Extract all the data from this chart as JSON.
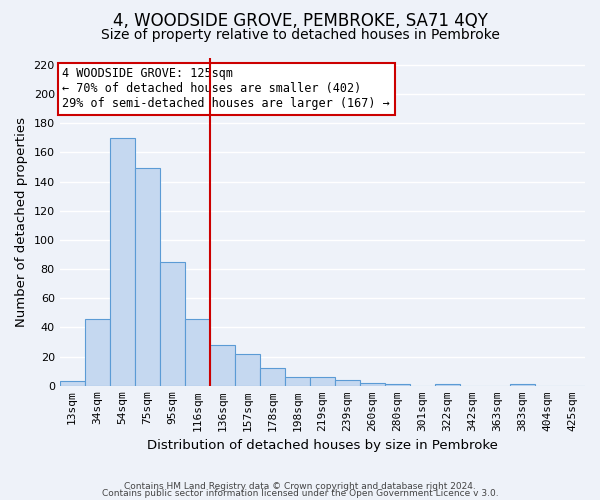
{
  "title": "4, WOODSIDE GROVE, PEMBROKE, SA71 4QY",
  "subtitle": "Size of property relative to detached houses in Pembroke",
  "xlabel": "Distribution of detached houses by size in Pembroke",
  "ylabel": "Number of detached properties",
  "bin_labels": [
    "13sqm",
    "34sqm",
    "54sqm",
    "75sqm",
    "95sqm",
    "116sqm",
    "136sqm",
    "157sqm",
    "178sqm",
    "198sqm",
    "219sqm",
    "239sqm",
    "260sqm",
    "280sqm",
    "301sqm",
    "322sqm",
    "342sqm",
    "363sqm",
    "383sqm",
    "404sqm",
    "425sqm"
  ],
  "bar_values": [
    3,
    46,
    170,
    149,
    85,
    46,
    28,
    22,
    12,
    6,
    6,
    4,
    2,
    1,
    0,
    1,
    0,
    0,
    1,
    0,
    0
  ],
  "bar_color": "#c5d8f0",
  "bar_edge_color": "#5b9bd5",
  "vline_color": "#cc0000",
  "vline_position": 5.5,
  "annotation_text": "4 WOODSIDE GROVE: 125sqm\n← 70% of detached houses are smaller (402)\n29% of semi-detached houses are larger (167) →",
  "annotation_box_color": "#ffffff",
  "annotation_box_edge": "#cc0000",
  "ylim": [
    0,
    225
  ],
  "yticks": [
    0,
    20,
    40,
    60,
    80,
    100,
    120,
    140,
    160,
    180,
    200,
    220
  ],
  "footer1": "Contains HM Land Registry data © Crown copyright and database right 2024.",
  "footer2": "Contains public sector information licensed under the Open Government Licence v 3.0.",
  "background_color": "#eef2f9",
  "grid_color": "#ffffff",
  "title_fontsize": 12,
  "subtitle_fontsize": 10,
  "axis_label_fontsize": 9.5,
  "tick_fontsize": 8,
  "annotation_fontsize": 8.5,
  "footer_fontsize": 6.5
}
